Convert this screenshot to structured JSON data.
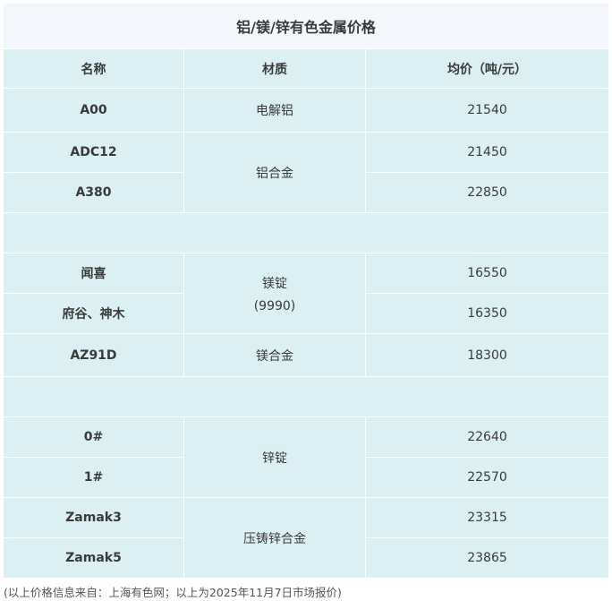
{
  "title": "铝/镁/锌有色金属价格",
  "headers": [
    "名称",
    "材质",
    "均价（吨/元）"
  ],
  "groups": [
    {
      "rows": [
        {
          "name": "A00",
          "material": "电解铝",
          "price": "21540"
        },
        {
          "name": "ADC12",
          "material": "铝合金",
          "price": "21450"
        },
        {
          "name": "A380",
          "price": "22850"
        }
      ]
    },
    {
      "rows": [
        {
          "name": "闻喜",
          "material": "镁锭",
          "material2": "(9990)",
          "price": "16550"
        },
        {
          "name": "府谷、神木",
          "price": "16350"
        },
        {
          "name": "AZ91D",
          "material": "镁合金",
          "price": "18300"
        }
      ]
    },
    {
      "rows": [
        {
          "name": "0#",
          "material": "锌锭",
          "price": "22640"
        },
        {
          "name": "1#",
          "price": "22570"
        },
        {
          "name": "Zamak3",
          "material": "压铸锌合金",
          "price": "23315"
        },
        {
          "name": "Zamak5",
          "price": "23865"
        }
      ]
    }
  ],
  "footnote": "(以上价格信息来自：上海有色网；以上为2025年11月7日市场报价)"
}
